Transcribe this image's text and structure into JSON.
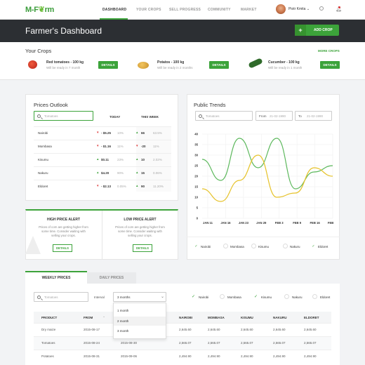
{
  "logo": {
    "left": "M-F",
    "right": "rm"
  },
  "nav": {
    "items": [
      "DASHBOARD",
      "YOUR CROPS",
      "SELL PROGRESS",
      "COMMUNITY",
      "MARKET"
    ],
    "user": "Piotr Kmita ⌄"
  },
  "header": {
    "title": "Farmer's Dashboard",
    "add_label": "ADD CROP"
  },
  "crops": {
    "title": "Your Crops",
    "more": "MORE CROPS",
    "details_label": "DETAILS",
    "items": [
      {
        "name": "Red tomatoes - 100 kg",
        "sub": "Will be ready in 7 month"
      },
      {
        "name": "Potatos - 100 kg",
        "sub": "Will be ready in 2 months"
      },
      {
        "name": "Cucumber - 100 kg",
        "sub": "Will be ready in 1 month"
      }
    ]
  },
  "prices": {
    "title": "Prices Outlook",
    "search_placeholder": "Tomatoes",
    "col_today": "TODAY",
    "col_week": "THIS WEEK",
    "rows": [
      {
        "city": "Nairobi",
        "today": "- $5.25",
        "tpct": "10%",
        "week": "66",
        "wpct": "63.5%"
      },
      {
        "city": "Mombasa",
        "today": "- $1.16",
        "tpct": "11%",
        "week": "-20",
        "wpct": "11%"
      },
      {
        "city": "Kisumu",
        "today": "$0.11",
        "tpct": "23%",
        "week": "10",
        "wpct": "2.02%"
      },
      {
        "city": "Nakuru",
        "today": "$4.20",
        "tpct": "90%",
        "week": "15",
        "wpct": "0.06%"
      },
      {
        "city": "Eldoret",
        "today": "- $2.13",
        "tpct": "0.05%",
        "week": "90",
        "wpct": "11.20%"
      }
    ]
  },
  "alerts": {
    "high_title": "HIGH PRICE ALERT",
    "low_title": "LOW PRICE ALERT",
    "desc1": "Prices of corn are getting higher from",
    "desc2": "some time. Consider waiting with",
    "desc3": "selling your crops.",
    "details_label": "DETAILS"
  },
  "trends": {
    "title": "Public Trends",
    "search_placeholder": "Tomatoes",
    "from_label": "From",
    "from_value": "21-02-1990",
    "to_label": "To",
    "to_value": "21-02-1990",
    "legend": [
      "Nairobi",
      "Mombasa",
      "Kisumu",
      "Nakuru",
      "Eldoret"
    ]
  },
  "chart_data": {
    "type": "line",
    "x": [
      "JAN 11",
      "JAN 16",
      "JAN 23",
      "JAN 29",
      "FEB 3",
      "FEB 9",
      "FEB 16",
      "FEB 23"
    ],
    "yticks": [
      "0",
      "5",
      "10",
      "15",
      "20",
      "25",
      "30",
      "35",
      "40"
    ],
    "ylim": [
      0,
      40
    ],
    "series": [
      {
        "color": "#5cb85c",
        "values": [
          28,
          18,
          38,
          24,
          38,
          14,
          22,
          25
        ]
      },
      {
        "color": "#e6c229",
        "values": [
          14,
          8,
          18,
          30,
          10,
          12,
          24,
          20
        ]
      }
    ]
  },
  "weekly": {
    "tab_weekly": "WEEKLY PRICES",
    "tab_daily": "DAILY PRICES",
    "search_placeholder": "Tomatoes",
    "interval_label": "Interval",
    "interval_value": "3 months",
    "options": [
      "1 month",
      "2 month",
      "3 month"
    ],
    "filters": [
      "Nairobi",
      "Mombasa",
      "Kisumu",
      "Nakuru",
      "Eldoret"
    ],
    "columns": [
      "PRODUCT",
      "FROM",
      "TO",
      "NAIROBI",
      "MOMBASA",
      "KISUMU",
      "NAKURU",
      "ELDORET"
    ],
    "rows": [
      [
        "Dry maize",
        "2015-08-17",
        "",
        "2,645.60",
        "2,645.60",
        "2,645.60",
        "2,645.60",
        "2,645.60"
      ],
      [
        "Tomatoes",
        "2015-08-24",
        "2015-08-30",
        "2,565.07",
        "2,565.07",
        "2,565.07",
        "2,565.07",
        "2,565.07"
      ],
      [
        "Potatoes",
        "2015-08-31",
        "2015-09-06",
        "2,494.90",
        "2,494.90",
        "2,494.90",
        "2,494.90",
        "2,494.90"
      ]
    ]
  }
}
